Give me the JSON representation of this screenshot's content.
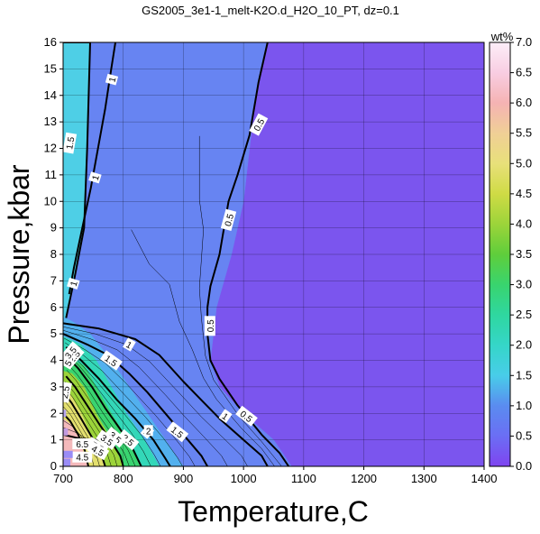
{
  "chart_data": {
    "type": "heatmap",
    "title": "GS2005_3e1-1_melt-K2O.d_H2O_10_PT, dz=0.1",
    "xlabel": "Temperature,C",
    "ylabel": "Pressure,kbar",
    "xlim": [
      700,
      1400
    ],
    "ylim": [
      0,
      16
    ],
    "xticks": [
      700,
      800,
      900,
      1000,
      1100,
      1200,
      1300,
      1400
    ],
    "yticks": [
      0,
      1,
      2,
      3,
      4,
      5,
      6,
      7,
      8,
      9,
      10,
      11,
      12,
      13,
      14,
      15,
      16
    ],
    "grid": true,
    "colorbar": {
      "label": "wt%",
      "range": [
        0,
        7
      ],
      "ticks": [
        "0.0",
        "0.5",
        "1.0",
        "1.5",
        "2.0",
        "2.5",
        "3.0",
        "3.5",
        "4.0",
        "4.5",
        "5.0",
        "5.5",
        "6.0",
        "6.5",
        "7.0"
      ],
      "stops": [
        {
          "v": 0.0,
          "c": "#7f44f0"
        },
        {
          "v": 0.5,
          "c": "#6b6ef4"
        },
        {
          "v": 1.0,
          "c": "#5a8cf0"
        },
        {
          "v": 1.5,
          "c": "#48cde9"
        },
        {
          "v": 2.0,
          "c": "#35d6c8"
        },
        {
          "v": 2.5,
          "c": "#2fd7a0"
        },
        {
          "v": 3.0,
          "c": "#39d46e"
        },
        {
          "v": 3.5,
          "c": "#5fce3b"
        },
        {
          "v": 4.0,
          "c": "#9cd43a"
        },
        {
          "v": 4.5,
          "c": "#cfdb45"
        },
        {
          "v": 5.0,
          "c": "#e8e07a"
        },
        {
          "v": 5.5,
          "c": "#f0cf96"
        },
        {
          "v": 6.0,
          "c": "#f5b3b3"
        },
        {
          "v": 6.5,
          "c": "#f8cde2"
        },
        {
          "v": 7.0,
          "c": "#fdeef8"
        }
      ]
    },
    "regions": [
      {
        "value": 0.2,
        "color": "#7b55ee",
        "points": [
          [
            1040,
            16
          ],
          [
            1400,
            16
          ],
          [
            1400,
            0
          ],
          [
            1080,
            0
          ],
          [
            1050,
            1
          ],
          [
            1000,
            2
          ],
          [
            960,
            3
          ],
          [
            945,
            4
          ],
          [
            950,
            5
          ],
          [
            955,
            6
          ],
          [
            980,
            8
          ],
          [
            1000,
            10
          ],
          [
            1010,
            12
          ],
          [
            1020,
            14
          ]
        ]
      },
      {
        "value": 0.8,
        "color": "#6784f2",
        "points": [
          [
            745,
            16
          ],
          [
            1040,
            16
          ],
          [
            1020,
            14
          ],
          [
            1010,
            12
          ],
          [
            1000,
            10
          ],
          [
            980,
            8
          ],
          [
            955,
            6
          ],
          [
            950,
            5
          ],
          [
            945,
            4
          ],
          [
            960,
            3
          ],
          [
            1000,
            2
          ],
          [
            1050,
            1
          ],
          [
            1080,
            0
          ],
          [
            900,
            0
          ],
          [
            870,
            1
          ],
          [
            840,
            2
          ],
          [
            810,
            3
          ],
          [
            780,
            4
          ],
          [
            745,
            5
          ],
          [
            720,
            5.4
          ],
          [
            705,
            5.6
          ],
          [
            718,
            7
          ],
          [
            735,
            9
          ],
          [
            740,
            12
          ]
        ]
      },
      {
        "value": 1.7,
        "color": "#4ecfe6",
        "points": [
          [
            700,
            16
          ],
          [
            745,
            16
          ],
          [
            740,
            12
          ],
          [
            735,
            9
          ],
          [
            718,
            7
          ],
          [
            705,
            5.6
          ],
          [
            700,
            5.6
          ]
        ]
      },
      {
        "value": 1.3,
        "color": "#52b0ee",
        "points": [
          [
            700,
            5.6
          ],
          [
            705,
            5.6
          ],
          [
            720,
            5.4
          ],
          [
            745,
            5
          ],
          [
            780,
            4
          ],
          [
            810,
            3
          ],
          [
            840,
            2
          ],
          [
            870,
            1
          ],
          [
            900,
            0
          ],
          [
            860,
            0
          ],
          [
            835,
            1
          ],
          [
            805,
            2
          ],
          [
            780,
            3
          ],
          [
            755,
            4
          ],
          [
            730,
            4.6
          ],
          [
            700,
            4.9
          ]
        ]
      },
      {
        "value": 2.2,
        "color": "#33d7b8",
        "points": [
          [
            700,
            4.9
          ],
          [
            730,
            4.6
          ],
          [
            755,
            4
          ],
          [
            780,
            3
          ],
          [
            805,
            2
          ],
          [
            835,
            1
          ],
          [
            860,
            0
          ],
          [
            830,
            0
          ],
          [
            808,
            1
          ],
          [
            780,
            2
          ],
          [
            755,
            3
          ],
          [
            735,
            3.8
          ],
          [
            700,
            4.2
          ]
        ]
      },
      {
        "value": 3.0,
        "color": "#39d470",
        "points": [
          [
            700,
            4.2
          ],
          [
            735,
            3.8
          ],
          [
            755,
            3
          ],
          [
            780,
            2
          ],
          [
            808,
            1
          ],
          [
            830,
            0
          ],
          [
            800,
            0
          ],
          [
            780,
            1
          ],
          [
            755,
            2
          ],
          [
            735,
            3
          ],
          [
            715,
            3.5
          ],
          [
            700,
            3.6
          ]
        ]
      },
      {
        "value": 4.0,
        "color": "#9cd43a",
        "points": [
          [
            700,
            3.6
          ],
          [
            715,
            3.5
          ],
          [
            735,
            3
          ],
          [
            755,
            2
          ],
          [
            780,
            1
          ],
          [
            800,
            0
          ],
          [
            770,
            0
          ],
          [
            750,
            1
          ],
          [
            730,
            2
          ],
          [
            710,
            2.8
          ],
          [
            700,
            3.0
          ]
        ]
      },
      {
        "value": 5.0,
        "color": "#e3df6e",
        "points": [
          [
            700,
            3.0
          ],
          [
            710,
            2.8
          ],
          [
            730,
            2
          ],
          [
            750,
            1
          ],
          [
            770,
            0
          ],
          [
            740,
            0
          ],
          [
            728,
            1
          ],
          [
            712,
            1.6
          ],
          [
            700,
            1.8
          ]
        ]
      },
      {
        "value": 6.2,
        "color": "#f4b9bb",
        "points": [
          [
            700,
            1.8
          ],
          [
            712,
            1.6
          ],
          [
            728,
            1
          ],
          [
            740,
            0
          ],
          [
            700,
            0
          ]
        ]
      }
    ],
    "contours": [
      {
        "level": 1.5,
        "points": [
          [
            700,
            16
          ],
          [
            745,
            16
          ],
          [
            740,
            12
          ],
          [
            735,
            9
          ],
          [
            718,
            7
          ],
          [
            705,
            5.6
          ]
        ],
        "labels": [
          {
            "x": 711,
            "y": 12.2,
            "rot": -80
          }
        ]
      },
      {
        "level": 1,
        "points": [
          [
            787,
            16
          ],
          [
            780,
            15
          ],
          [
            770,
            13.5
          ],
          [
            758,
            12
          ],
          [
            746,
            10.5
          ],
          [
            732,
            9
          ],
          [
            718,
            7.5
          ],
          [
            710,
            6.5
          ]
        ],
        "labels": [
          {
            "x": 781,
            "y": 14.6,
            "rot": -75
          },
          {
            "x": 753,
            "y": 10.9,
            "rot": -73
          },
          {
            "x": 717,
            "y": 6.9,
            "rot": -73
          }
        ]
      },
      {
        "level": 0.5,
        "points": [
          [
            1040,
            16
          ],
          [
            1025,
            14.5
          ],
          [
            1010,
            12.5
          ],
          [
            990,
            11
          ],
          [
            975,
            10
          ],
          [
            960,
            8
          ],
          [
            945,
            6.8
          ],
          [
            940,
            6
          ],
          [
            940,
            5
          ],
          [
            945,
            4
          ],
          [
            960,
            3.3
          ],
          [
            990,
            2.3
          ],
          [
            1030,
            1.2
          ],
          [
            1060,
            0.5
          ],
          [
            1075,
            0
          ]
        ],
        "labels": [
          {
            "x": 1025,
            "y": 12.9,
            "rot": -62
          },
          {
            "x": 975,
            "y": 9.3,
            "rot": -75
          },
          {
            "x": 944,
            "y": 5.3,
            "rot": -90
          },
          {
            "x": 1005,
            "y": 1.9,
            "rot": 38
          }
        ]
      },
      {
        "level": 1,
        "points": [
          [
            700,
            5.4
          ],
          [
            760,
            5.2
          ],
          [
            820,
            4.8
          ],
          [
            860,
            4.2
          ],
          [
            900,
            3.2
          ],
          [
            930,
            2.5
          ],
          [
            960,
            1.8
          ],
          [
            1000,
            1
          ],
          [
            1030,
            0.4
          ],
          [
            1040,
            0
          ]
        ],
        "labels": [
          {
            "x": 810,
            "y": 4.6,
            "rot": 30
          },
          {
            "x": 970,
            "y": 1.9,
            "rot": 35
          }
        ]
      },
      {
        "level": 1.5,
        "points": [
          [
            700,
            5.0
          ],
          [
            740,
            4.6
          ],
          [
            775,
            4.2
          ],
          [
            810,
            3.5
          ],
          [
            840,
            2.8
          ],
          [
            870,
            2.0
          ],
          [
            900,
            1.2
          ],
          [
            930,
            0.4
          ],
          [
            940,
            0
          ]
        ],
        "labels": [
          {
            "x": 780,
            "y": 4.0,
            "rot": 35
          },
          {
            "x": 890,
            "y": 1.3,
            "rot": 38
          }
        ]
      },
      {
        "level": 2,
        "points": [
          [
            705,
            4.5
          ],
          [
            730,
            4.0
          ],
          [
            760,
            3.3
          ],
          [
            790,
            2.5
          ],
          [
            820,
            1.8
          ],
          [
            850,
            1.0
          ],
          [
            870,
            0.3
          ],
          [
            878,
            0
          ]
        ],
        "labels": [
          {
            "x": 840,
            "y": 1.3,
            "rot": 40
          }
        ]
      },
      {
        "level": 2.5,
        "points": [
          [
            708,
            4.1
          ],
          [
            725,
            3.7
          ],
          [
            748,
            3.0
          ],
          [
            770,
            2.2
          ],
          [
            795,
            1.4
          ],
          [
            815,
            0.7
          ],
          [
            830,
            0
          ]
        ],
        "labels": [
          {
            "x": 808,
            "y": 1.0,
            "rot": 40
          }
        ]
      },
      {
        "level": 3.5,
        "points": [
          [
            705,
            3.4
          ],
          [
            720,
            3.0
          ],
          [
            740,
            2.3
          ],
          [
            760,
            1.6
          ],
          [
            778,
            1.0
          ],
          [
            795,
            0.4
          ],
          [
            800,
            0
          ]
        ],
        "labels": [
          {
            "x": 787,
            "y": 1.1,
            "rot": 40
          }
        ]
      },
      {
        "level": 4.5,
        "points": [
          [
            700,
            2.8
          ],
          [
            714,
            2.4
          ],
          [
            730,
            1.8
          ],
          [
            748,
            1.1
          ],
          [
            763,
            0.5
          ],
          [
            770,
            0
          ]
        ],
        "labels": [
          {
            "x": 732,
            "y": 0.35,
            "rot": 0
          }
        ]
      },
      {
        "level": 5.5,
        "points": [
          [
            700,
            2.0
          ],
          [
            712,
            1.7
          ],
          [
            725,
            1.2
          ],
          [
            736,
            0.6
          ],
          [
            742,
            0
          ]
        ],
        "labels": [
          {
            "x": 757,
            "y": 0.75,
            "rot": 30
          }
        ]
      },
      {
        "level": 6.5,
        "points": [
          [
            700,
            1.2
          ],
          [
            728,
            1.05
          ],
          [
            760,
            1.0
          ],
          [
            780,
            1.0
          ]
        ],
        "labels": [
          {
            "x": 732,
            "y": 0.85,
            "rot": 0
          }
        ]
      }
    ],
    "extra_labels": [
      {
        "text": "2.5",
        "x": 718,
        "y": 4.15,
        "rot": -50
      },
      {
        "text": "3.5",
        "x": 712,
        "y": 4.3,
        "rot": -50
      },
      {
        "text": "5",
        "x": 708,
        "y": 3.9,
        "rot": -60
      },
      {
        "text": "2.5",
        "x": 703,
        "y": 2.8,
        "rot": -80
      },
      {
        "text": "3.5",
        "x": 773,
        "y": 1.0,
        "rot": 35
      },
      {
        "text": "4.5",
        "x": 758,
        "y": 0.6,
        "rot": 30
      },
      {
        "text": "2",
        "x": 842,
        "y": 1.35,
        "rot": 0
      }
    ]
  }
}
